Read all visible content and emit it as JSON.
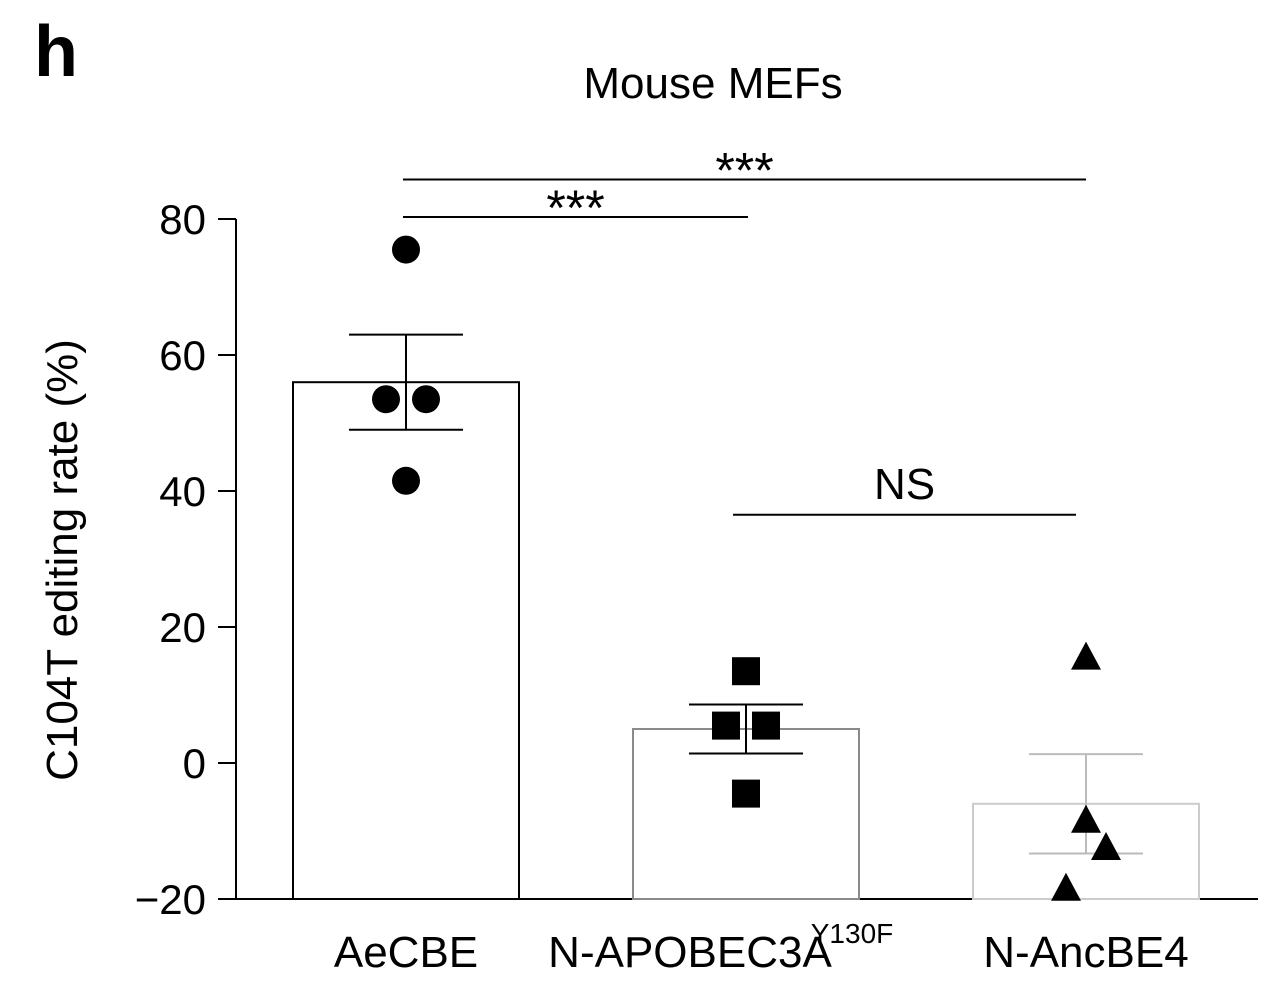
{
  "panel_label": "h",
  "chart_data": {
    "type": "bar",
    "title": "Mouse MEFs",
    "ylabel": "C104T editing rate (%)",
    "xlabel": "",
    "ylim": [
      -20,
      80
    ],
    "yticks": [
      -20,
      0,
      20,
      40,
      60,
      80
    ],
    "categories": [
      {
        "name": "AeCBE",
        "sup": ""
      },
      {
        "name": "N-APOBEC3A",
        "sup": "Y130F"
      },
      {
        "name": "N-AncBE4",
        "sup": ""
      }
    ],
    "values": [
      56,
      5,
      -6
    ],
    "error": [
      7,
      3.6,
      7.3
    ],
    "points": [
      [
        75.5,
        53.5,
        53.5,
        41.5
      ],
      [
        13.5,
        5.5,
        5.5,
        -4.5
      ],
      [
        15.5,
        -8.5,
        -12.5,
        -18.5
      ]
    ],
    "markers": [
      "circle",
      "square",
      "triangle"
    ],
    "bar_edge_colors": [
      "#000000",
      "#8a8a8a",
      "#cccccc"
    ],
    "error_colors": [
      "#000000",
      "#000000",
      "#bbbbbb"
    ],
    "significance": [
      {
        "from": 0,
        "to": 1,
        "label": "***",
        "y": 80.3
      },
      {
        "from": 0,
        "to": 2,
        "label": "***",
        "y": 85.8
      },
      {
        "from": 1,
        "to": 2,
        "label": "NS",
        "y": 36.5
      }
    ],
    "grid": false,
    "legend": "none"
  }
}
